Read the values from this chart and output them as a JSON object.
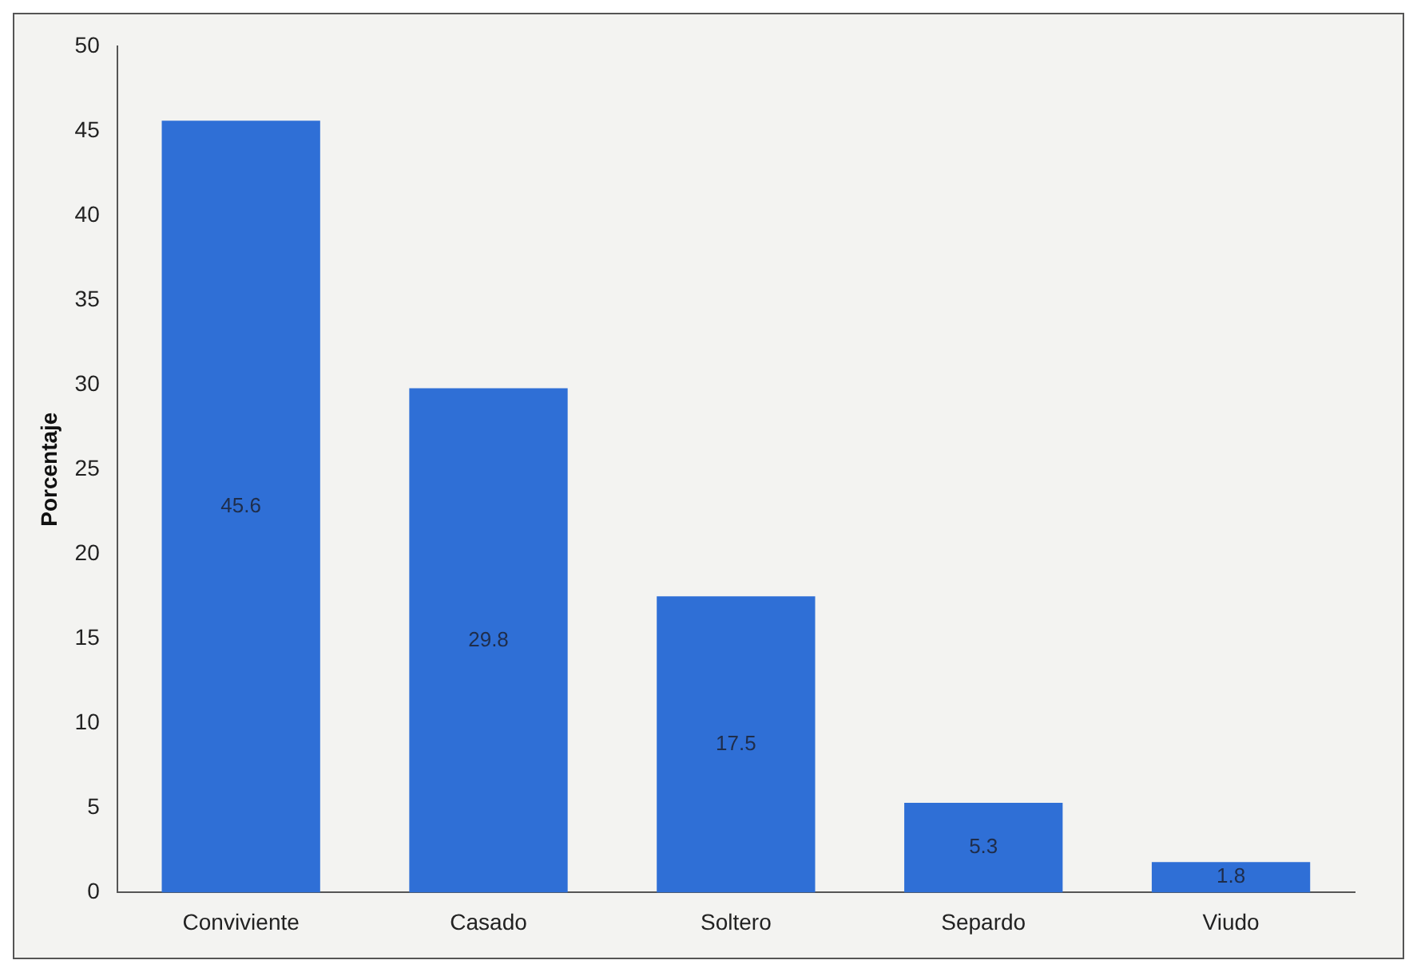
{
  "chart_data": {
    "type": "bar",
    "ylabel": "Porcentaje",
    "categories": [
      "Conviviente",
      "Casado",
      "Soltero",
      "Separdo",
      "Viudo"
    ],
    "values": [
      45.6,
      29.8,
      17.5,
      5.3,
      1.8
    ],
    "color": "#2f6fd6",
    "ylim": [
      0,
      50
    ],
    "yticks": [
      0,
      5,
      10,
      15,
      20,
      25,
      30,
      35,
      40,
      45,
      50
    ],
    "grid": false,
    "legend": false,
    "data_labels": true
  }
}
